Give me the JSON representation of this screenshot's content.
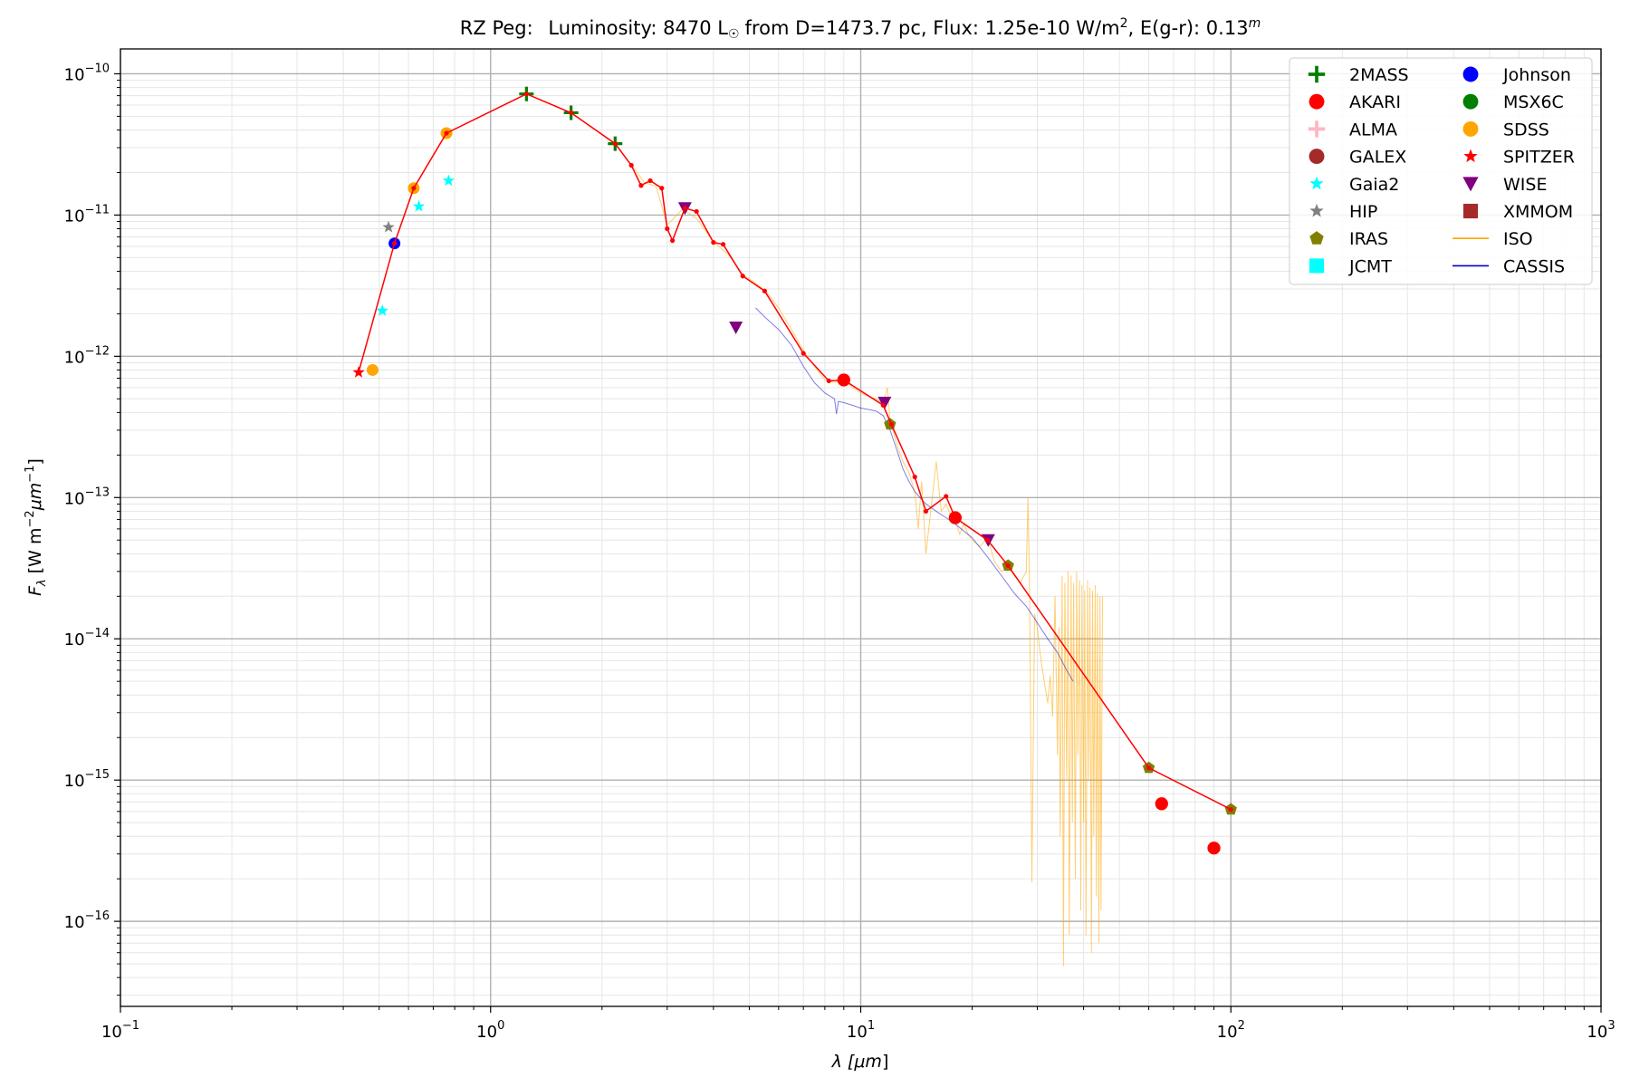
{
  "chart_data": {
    "type": "scatter",
    "title_text": {
      "star": "RZ Peg:",
      "luminosity_label": "Luminosity: 8470 L",
      "sun_symbol": "☉",
      "distance": "from D=1473.7 pc, Flux: 1.25e-10 W/m",
      "flux_exp": "2",
      "ext": ", E(g-r): 0.13",
      "ext_exp": "m"
    },
    "xlabel": {
      "base": "λ [",
      "unit": "μm",
      "close": "]"
    },
    "ylabel": {
      "base": "F",
      "sub": "λ",
      "rest": " [W m",
      "exp1": "−2",
      "unit": "μm",
      "exp2": "−1",
      "close": "]"
    },
    "x_scale": "log",
    "y_scale": "log",
    "xlim": [
      0.1,
      1000
    ],
    "ylim": [
      2.5e-17,
      1.5e-10
    ],
    "x_ticks": [
      {
        "value": 0.1,
        "base": "10",
        "exp": "−1"
      },
      {
        "value": 1,
        "base": "10",
        "exp": "0"
      },
      {
        "value": 10,
        "base": "10",
        "exp": "1"
      },
      {
        "value": 100,
        "base": "10",
        "exp": "2"
      },
      {
        "value": 1000,
        "base": "10",
        "exp": "3"
      }
    ],
    "y_ticks": [
      {
        "value": 1e-16,
        "base": "10",
        "exp": "−16"
      },
      {
        "value": 1e-15,
        "base": "10",
        "exp": "−15"
      },
      {
        "value": 1e-14,
        "base": "10",
        "exp": "−14"
      },
      {
        "value": 1e-13,
        "base": "10",
        "exp": "−13"
      },
      {
        "value": 1e-12,
        "base": "10",
        "exp": "−12"
      },
      {
        "value": 1e-11,
        "base": "10",
        "exp": "−11"
      },
      {
        "value": 1e-10,
        "base": "10",
        "exp": "−10"
      }
    ],
    "grid": "major and minor",
    "legend_position": "top-right",
    "legend_columns": 2,
    "colors": {
      "model": "#ff0000",
      "2MASS": "#008000",
      "AKARI": "#ff0000",
      "ALMA": "#ffb6c1",
      "GALEX": "#a52a2a",
      "Gaia2": "#00ffff",
      "HIP": "#808080",
      "IRAS": "#808000",
      "JCMT": "#00ffff",
      "Johnson": "#0000ff",
      "MSX6C": "#008000",
      "SDSS": "#ffa500",
      "SPITZER": "#ff0000",
      "WISE": "#800080",
      "XMMOM": "#a52a2a",
      "ISO": "#ffa500",
      "CASSIS": "#0000cc"
    },
    "legend": [
      {
        "name": "2MASS",
        "marker": "plus"
      },
      {
        "name": "AKARI",
        "marker": "circle"
      },
      {
        "name": "ALMA",
        "marker": "plus"
      },
      {
        "name": "GALEX",
        "marker": "circle"
      },
      {
        "name": "Gaia2",
        "marker": "star"
      },
      {
        "name": "HIP",
        "marker": "star"
      },
      {
        "name": "IRAS",
        "marker": "pentagon"
      },
      {
        "name": "JCMT",
        "marker": "square"
      },
      {
        "name": "Johnson",
        "marker": "circle"
      },
      {
        "name": "MSX6C",
        "marker": "circle"
      },
      {
        "name": "SDSS",
        "marker": "circle"
      },
      {
        "name": "SPITZER",
        "marker": "star"
      },
      {
        "name": "WISE",
        "marker": "triangle-down"
      },
      {
        "name": "XMMOM",
        "marker": "square"
      },
      {
        "name": "ISO",
        "marker": "line"
      },
      {
        "name": "CASSIS",
        "marker": "line"
      }
    ],
    "model_line": {
      "x": [
        0.44,
        0.55,
        0.62,
        0.76,
        1.25,
        1.65,
        2.17,
        2.4,
        2.55,
        2.7,
        2.9,
        3.0,
        3.1,
        3.35,
        3.6,
        4.0,
        4.25,
        4.8,
        5.5,
        7.0,
        8.2,
        9.0,
        11.5,
        12.1,
        14.0,
        15.0,
        17.0,
        18.0,
        22.0,
        25.0,
        60.0,
        100.0
      ],
      "y": [
        7.7e-13,
        6.3e-12,
        1.55e-11,
        3.8e-11,
        7.2e-11,
        5.3e-11,
        3.2e-11,
        2.25e-11,
        1.62e-11,
        1.75e-11,
        1.55e-11,
        8e-12,
        6.6e-12,
        1.12e-11,
        1.06e-11,
        6.4e-12,
        6.2e-12,
        3.7e-12,
        2.9e-12,
        1.05e-12,
        6.7e-13,
        6.8e-13,
        4.5e-13,
        3.3e-13,
        1.4e-13,
        8e-14,
        1.02e-13,
        7.2e-14,
        5e-14,
        3.3e-14,
        1.22e-15,
        6.2e-16
      ]
    },
    "series": [
      {
        "name": "2MASS",
        "points": [
          [
            1.25,
            7.2e-11
          ],
          [
            1.65,
            5.3e-11
          ],
          [
            2.17,
            3.2e-11
          ]
        ]
      },
      {
        "name": "AKARI",
        "points": [
          [
            9.0,
            6.8e-13
          ],
          [
            18.0,
            7.2e-14
          ],
          [
            65.0,
            6.8e-16
          ],
          [
            90.0,
            3.3e-16
          ]
        ]
      },
      {
        "name": "Gaia2",
        "points": [
          [
            0.51,
            2.1e-12
          ],
          [
            0.64,
            1.15e-11
          ],
          [
            0.77,
            1.75e-11
          ]
        ]
      },
      {
        "name": "HIP",
        "points": [
          [
            0.53,
            8.2e-12
          ]
        ]
      },
      {
        "name": "IRAS",
        "points": [
          [
            12.0,
            3.3e-13
          ],
          [
            25.0,
            3.3e-14
          ],
          [
            60.0,
            1.22e-15
          ],
          [
            100.0,
            6.2e-16
          ]
        ]
      },
      {
        "name": "Johnson",
        "points": [
          [
            0.55,
            6.3e-12
          ]
        ]
      },
      {
        "name": "SDSS",
        "points": [
          [
            0.48,
            8e-13
          ],
          [
            0.62,
            1.55e-11
          ],
          [
            0.76,
            3.8e-11
          ]
        ]
      },
      {
        "name": "SPITZER",
        "points": [
          [
            0.44,
            7.7e-13
          ]
        ]
      },
      {
        "name": "WISE",
        "points": [
          [
            3.35,
            1.12e-11
          ],
          [
            4.6,
            1.6e-12
          ],
          [
            11.6,
            4.7e-13
          ],
          [
            22.1,
            5e-14
          ]
        ]
      }
    ],
    "iso_spectrum": {
      "x": [
        2.4,
        2.6,
        2.8,
        3.0,
        3.3,
        3.6,
        4.0,
        4.4,
        4.8,
        5.2,
        5.6,
        6.0,
        6.5,
        7.0,
        7.5,
        8.0,
        8.5,
        9.0,
        9.5,
        10.0,
        10.5,
        11.0,
        11.5,
        11.8,
        12.0,
        12.5,
        13.0,
        13.5,
        14.0,
        14.3,
        14.6,
        15.0,
        15.5,
        16.0,
        16.5,
        17.0,
        17.5,
        18.0,
        18.5,
        19.0,
        19.5,
        20.0,
        21.0,
        22.0,
        23.0,
        24.0,
        25.0,
        26.0,
        27.0,
        28.0,
        28.3,
        28.6,
        29.0,
        29.5,
        30.0,
        30.5,
        31.0,
        31.5,
        32.0,
        32.5,
        33.0,
        33.5,
        34.0,
        34.3,
        34.6,
        35.0,
        35.3,
        35.6,
        36.0,
        36.3,
        36.6,
        37.0,
        37.3,
        37.6,
        38.0,
        38.3,
        38.6,
        39.0,
        39.3,
        39.6,
        40.0,
        40.3,
        40.6,
        41.0,
        41.3,
        41.6,
        42.0,
        42.3,
        42.6,
        43.0,
        43.3,
        43.6,
        44.0,
        44.3,
        44.6,
        45.0
      ],
      "y": [
        2.3e-11,
        1.7e-11,
        1.6e-11,
        8.5e-12,
        1.1e-11,
        9.5e-12,
        6.5e-12,
        5.2e-12,
        3.8e-12,
        3.3e-12,
        2.8e-12,
        2.2e-12,
        1.55e-12,
        1.1e-12,
        8.5e-13,
        6.8e-13,
        6.5e-13,
        6.9e-13,
        6e-13,
        5.5e-13,
        5.2e-13,
        5e-13,
        4.6e-13,
        6e-13,
        3.6e-13,
        2.4e-13,
        1.8e-13,
        1.5e-13,
        1.1e-13,
        6e-14,
        1.3e-13,
        4e-14,
        8.5e-14,
        1.8e-13,
        8e-14,
        9e-14,
        7.5e-14,
        7e-14,
        5.5e-14,
        6.5e-14,
        5.5e-14,
        5e-14,
        4.5e-14,
        5.2e-14,
        3.5e-14,
        3e-14,
        3.2e-14,
        2.8e-14,
        2.5e-14,
        3e-14,
        1e-13,
        2e-14,
        1.9e-16,
        1.5e-14,
        1.2e-14,
        8e-15,
        6e-15,
        4.5e-15,
        3.5e-15,
        5.5e-15,
        2.8e-15,
        2e-14,
        1.5e-15,
        1.2e-14,
        4e-16,
        2.8e-14,
        4.8e-17,
        2.5e-14,
        1e-15,
        3e-14,
        8e-17,
        2.8e-14,
        5e-16,
        2.5e-14,
        2e-16,
        3e-14,
        1.5e-15,
        2.6e-14,
        1.2e-16,
        2.4e-14,
        5e-16,
        2.2e-14,
        8e-17,
        2.6e-14,
        1e-15,
        2.3e-14,
        6e-17,
        2.2e-14,
        4e-16,
        2.4e-14,
        1.5e-16,
        2.1e-14,
        7e-17,
        2e-14,
        1.2e-16,
        2e-14
      ]
    },
    "cassis_spectrum": {
      "x": [
        5.2,
        5.5,
        6.0,
        6.5,
        7.0,
        7.5,
        8.0,
        8.5,
        8.6,
        8.7,
        9.0,
        9.5,
        10.0,
        10.5,
        11.0,
        11.5,
        12.0,
        12.5,
        13.0,
        13.5,
        14.0,
        15.0,
        16.0,
        17.0,
        18.0,
        19.0,
        20.0,
        22.0,
        24.0,
        26.0,
        28.0,
        30.0,
        32.0,
        34.0,
        36.0,
        37.5
      ],
      "y": [
        2.2e-12,
        1.9e-12,
        1.55e-12,
        1.2e-12,
        8.5e-13,
        6.5e-13,
        5.5e-13,
        5e-13,
        3.9e-13,
        4.8e-13,
        4.7e-13,
        4.5e-13,
        4.3e-13,
        4.2e-13,
        4.1e-13,
        3.8e-13,
        3e-13,
        2.2e-13,
        1.6e-13,
        1.3e-13,
        1.1e-13,
        9e-14,
        8e-14,
        7.2e-14,
        6.5e-14,
        5.8e-14,
        5.2e-14,
        3.8e-14,
        2.8e-14,
        2.1e-14,
        1.7e-14,
        1.3e-14,
        1e-14,
        8e-15,
        6e-15,
        5e-15
      ]
    }
  }
}
